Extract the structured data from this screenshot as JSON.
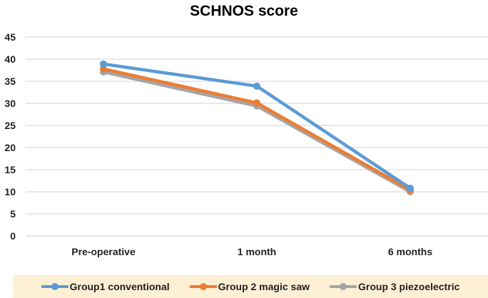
{
  "chart_data": {
    "type": "line",
    "title": "SCHNOS score",
    "categories": [
      "Pre-operative",
      "1 month",
      "6 months"
    ],
    "ylim": [
      0,
      45
    ],
    "yticks": [
      0,
      5,
      10,
      15,
      20,
      25,
      30,
      35,
      40,
      45
    ],
    "grid": true,
    "legend_position": "bottom",
    "series": [
      {
        "name": "Group1 conventional",
        "color": "#5b9bd5",
        "values": [
          38.9,
          33.9,
          10.8
        ]
      },
      {
        "name": "Group 2 magic saw",
        "color": "#ed7d31",
        "values": [
          37.8,
          30.1,
          10.4
        ]
      },
      {
        "name": "Group 3 piezoelectric",
        "color": "#a5a5a5",
        "values": [
          37.1,
          29.4,
          10.0
        ]
      }
    ]
  }
}
